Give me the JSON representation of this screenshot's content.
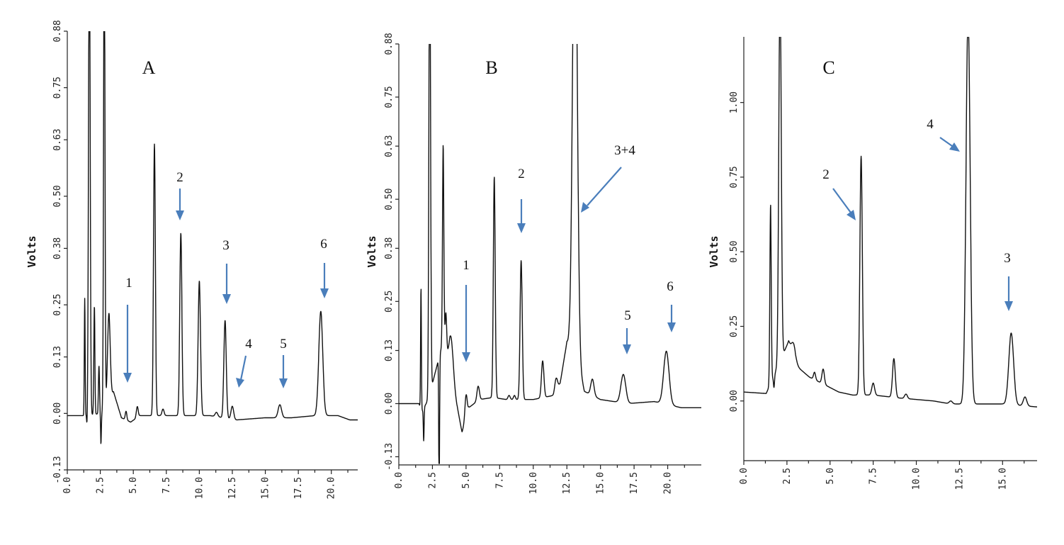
{
  "chart_data": [
    {
      "panel": "A",
      "type": "line",
      "ylabel": "Volts",
      "xlabel": "",
      "xlim": [
        0.0,
        22.0
      ],
      "ylim": [
        -0.13,
        0.88
      ],
      "xticks": [
        "0.0",
        "2.5",
        "5.0",
        "7.5",
        "10.0",
        "12.5",
        "15.0",
        "17.5",
        "20.0"
      ],
      "yticks": [
        "-0.13",
        "0.00",
        "0.13",
        "0.25",
        "0.38",
        "0.50",
        "0.63",
        "0.75",
        "0.88"
      ],
      "series": [
        {
          "baseline": [
            [
              0.0,
              -0.005
            ],
            [
              1.3,
              -0.005
            ],
            [
              2.6,
              0.0
            ],
            [
              3.5,
              0.05
            ],
            [
              4.1,
              -0.01
            ],
            [
              4.8,
              -0.02
            ],
            [
              5.5,
              -0.005
            ],
            [
              7.0,
              -0.005
            ],
            [
              9.0,
              -0.005
            ],
            [
              10.8,
              -0.005
            ],
            [
              12.8,
              -0.015
            ],
            [
              15.0,
              -0.01
            ],
            [
              17.0,
              -0.01
            ],
            [
              18.8,
              -0.005
            ],
            [
              20.5,
              -0.005
            ],
            [
              21.4,
              -0.015
            ],
            [
              22.0,
              -0.015
            ]
          ],
          "peaks": [
            [
              1.32,
              0.27,
              0.03
            ],
            [
              1.67,
              1.2,
              0.06
            ],
            [
              2.05,
              0.25,
              0.04
            ],
            [
              2.4,
              0.11,
              0.04
            ],
            [
              2.8,
              1.2,
              0.05
            ],
            [
              3.15,
              0.2,
              0.1
            ],
            [
              4.45,
              0.02,
              0.06
            ],
            [
              5.3,
              0.025,
              0.07
            ],
            [
              6.6,
              0.625,
              0.07
            ],
            [
              7.25,
              0.015,
              0.08
            ],
            [
              8.6,
              0.42,
              0.08
            ],
            [
              10.0,
              0.31,
              0.09
            ],
            [
              11.3,
              0.01,
              0.1
            ],
            [
              11.95,
              0.225,
              0.09
            ],
            [
              12.5,
              0.03,
              0.1
            ],
            [
              16.1,
              0.03,
              0.13
            ],
            [
              19.2,
              0.24,
              0.15
            ]
          ],
          "dips": [
            [
              1.5,
              -0.03,
              0.03
            ],
            [
              2.55,
              -0.07,
              0.03
            ]
          ]
        }
      ],
      "annotations": [
        {
          "text": "A",
          "kind": "panel"
        },
        {
          "text": "1",
          "x": 4.5
        },
        {
          "text": "2",
          "x": 8.5
        },
        {
          "text": "3",
          "x": 11.9
        },
        {
          "text": "4",
          "x": 12.8
        },
        {
          "text": "5",
          "x": 16.1
        },
        {
          "text": "6",
          "x": 19.2
        }
      ]
    },
    {
      "panel": "B",
      "type": "line",
      "ylabel": "Volts",
      "xlabel": "",
      "xlim": [
        0.0,
        22.5
      ],
      "ylim": [
        -0.15,
        0.88
      ],
      "xticks": [
        "0.0",
        "2.5",
        "5.0",
        "7.5",
        "10.0",
        "12.5",
        "15.0",
        "17.5",
        "20.0"
      ],
      "yticks": [
        "-0.13",
        "0.00",
        "0.13",
        "0.25",
        "0.38",
        "0.50",
        "0.63",
        "0.75",
        "0.88"
      ],
      "series": [
        {
          "baseline": [
            [
              0.0,
              0.0
            ],
            [
              1.5,
              0.0
            ],
            [
              1.7,
              -0.02
            ],
            [
              2.2,
              0.01
            ],
            [
              3.2,
              0.14
            ],
            [
              3.8,
              0.1
            ],
            [
              4.3,
              0.0
            ],
            [
              4.7,
              -0.07
            ],
            [
              5.2,
              -0.01
            ],
            [
              6.0,
              0.01
            ],
            [
              7.0,
              0.015
            ],
            [
              8.0,
              0.01
            ],
            [
              10.0,
              0.01
            ],
            [
              11.5,
              0.02
            ],
            [
              12.0,
              0.05
            ],
            [
              12.5,
              0.15
            ],
            [
              13.2,
              0.12
            ],
            [
              13.8,
              0.03
            ],
            [
              15.0,
              0.01
            ],
            [
              17.0,
              0.0
            ],
            [
              19.0,
              0.005
            ],
            [
              21.0,
              -0.01
            ],
            [
              22.5,
              -0.01
            ]
          ],
          "peaks": [
            [
              1.65,
              0.3,
              0.03
            ],
            [
              2.3,
              1.2,
              0.06
            ],
            [
              3.3,
              0.5,
              0.05
            ],
            [
              3.5,
              0.1,
              0.06
            ],
            [
              3.9,
              0.08,
              0.15
            ],
            [
              5.0,
              0.055,
              0.08
            ],
            [
              5.9,
              0.035,
              0.09
            ],
            [
              7.1,
              0.54,
              0.07
            ],
            [
              8.2,
              0.01,
              0.08
            ],
            [
              8.6,
              0.01,
              0.07
            ],
            [
              9.1,
              0.34,
              0.08
            ],
            [
              10.7,
              0.09,
              0.09
            ],
            [
              11.7,
              0.03,
              0.1
            ],
            [
              13.1,
              1.2,
              0.17
            ],
            [
              14.4,
              0.04,
              0.12
            ],
            [
              16.7,
              0.07,
              0.18
            ],
            [
              19.9,
              0.13,
              0.2
            ]
          ],
          "dips": [
            [
              1.85,
              -0.08,
              0.03
            ],
            [
              3.0,
              -0.35,
              0.03
            ]
          ]
        }
      ],
      "annotations": [
        {
          "text": "B",
          "kind": "panel"
        },
        {
          "text": "1",
          "x": 5.1
        },
        {
          "text": "2",
          "x": 9.4
        },
        {
          "text": "3+4",
          "x": 13.8
        },
        {
          "text": "5",
          "x": 16.7
        },
        {
          "text": "6",
          "x": 20.0
        }
      ]
    },
    {
      "panel": "C",
      "type": "line",
      "ylabel": "Volts",
      "xlabel": "",
      "xlim": [
        0.0,
        17.0
      ],
      "ylim": [
        -0.2,
        1.22
      ],
      "xticks": [
        "0.0",
        "2.5",
        "5.0",
        "7.5",
        "10.0",
        "12.5",
        "15.0"
      ],
      "yticks": [
        "0.00",
        "0.25",
        "0.50",
        "0.75",
        "1.00"
      ],
      "series": [
        {
          "baseline": [
            [
              0.0,
              0.03
            ],
            [
              1.3,
              0.025
            ],
            [
              2.6,
              0.2
            ],
            [
              3.0,
              0.12
            ],
            [
              3.8,
              0.08
            ],
            [
              4.5,
              0.06
            ],
            [
              5.5,
              0.03
            ],
            [
              6.3,
              0.02
            ],
            [
              7.5,
              0.02
            ],
            [
              9.0,
              0.01
            ],
            [
              11.0,
              0.0
            ],
            [
              12.0,
              -0.01
            ],
            [
              13.5,
              -0.01
            ],
            [
              15.0,
              -0.01
            ],
            [
              17.0,
              -0.02
            ]
          ],
          "peaks": [
            [
              1.55,
              0.6,
              0.04
            ],
            [
              2.1,
              1.3,
              0.07
            ],
            [
              2.9,
              0.05,
              0.12
            ],
            [
              4.1,
              0.025,
              0.06
            ],
            [
              4.6,
              0.05,
              0.07
            ],
            [
              6.8,
              0.8,
              0.07
            ],
            [
              7.5,
              0.04,
              0.08
            ],
            [
              8.7,
              0.13,
              0.08
            ],
            [
              9.4,
              0.015,
              0.08
            ],
            [
              12.0,
              0.01,
              0.09
            ],
            [
              13.0,
              1.3,
              0.12
            ],
            [
              15.5,
              0.24,
              0.14
            ],
            [
              16.3,
              0.03,
              0.1
            ]
          ],
          "dips": [
            [
              1.75,
              -0.04,
              0.03
            ]
          ]
        }
      ],
      "annotations": [
        {
          "text": "C",
          "kind": "panel"
        },
        {
          "text": "2",
          "x": 6.3
        },
        {
          "text": "4",
          "x": 12.0
        },
        {
          "text": "3",
          "x": 15.5
        }
      ]
    }
  ]
}
